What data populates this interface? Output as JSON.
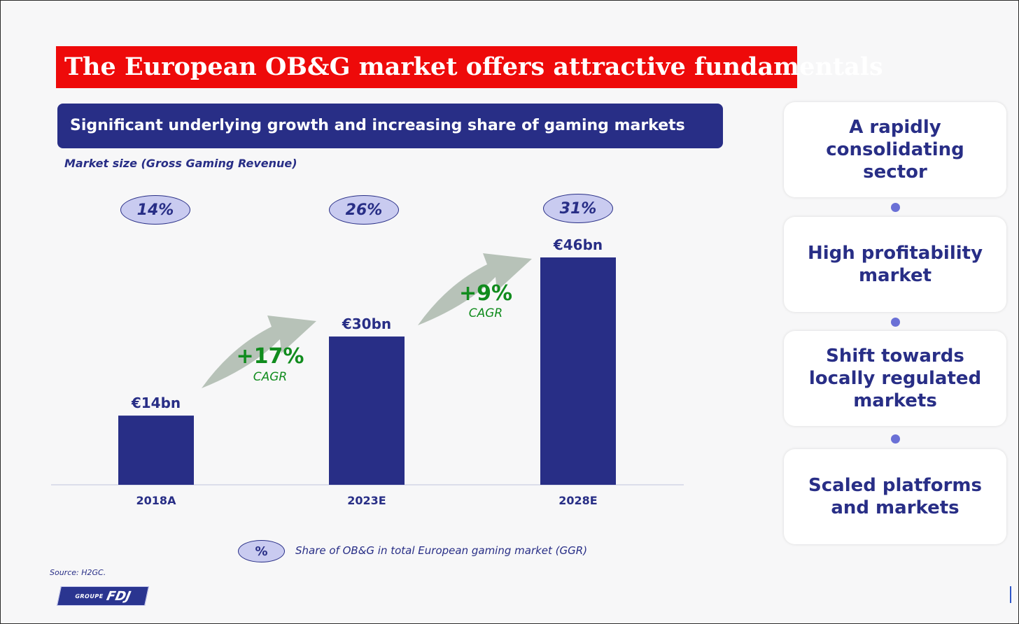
{
  "title": "The European OB&G market offers attractive fundamentals",
  "section_header": "Significant underlying growth and increasing share of gaming markets",
  "chart_data": {
    "type": "bar",
    "subtitle": "Market size (Gross Gaming Revenue)",
    "categories": [
      "2018A",
      "2023E",
      "2028E"
    ],
    "values": [
      14,
      30,
      46
    ],
    "value_labels": [
      "€14bn",
      "€30bn",
      "€46bn"
    ],
    "share_labels": [
      "14%",
      "26%",
      "31%"
    ],
    "cagr": [
      {
        "value": "+17%",
        "label": "CAGR"
      },
      {
        "value": "+9%",
        "label": "CAGR"
      }
    ],
    "legend": {
      "symbol": "%",
      "text": "Share of OB&G in total European gaming market (GGR)"
    },
    "bar_color": "#282e86",
    "arrow_color": "#b7c2b8"
  },
  "source": "Source: H2GC.",
  "logo": {
    "groupe": "GROUPE",
    "brand": "FDJ"
  },
  "highlights": [
    "A rapidly consolidating sector",
    "High profitability market",
    "Shift towards locally regulated markets",
    "Scaled platforms and markets"
  ],
  "colors": {
    "accent_red": "#ee0a0a",
    "navy": "#282e86",
    "green": "#118c1e",
    "oval_fill": "#c9cbf0"
  }
}
